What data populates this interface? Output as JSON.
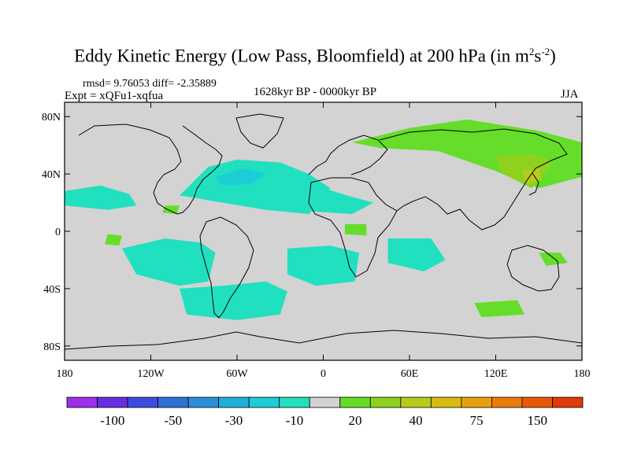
{
  "chart_data": {
    "type": "heatmap",
    "title_main": "Eddy Kinetic Energy (Low Pass, Bloomfield) at 200 hPa (in m",
    "title_sup1": "2",
    "title_mid": "s",
    "title_sup2": "-2",
    "title_end": ")",
    "stats": "rmsd= 9.76053 diff= -2.35889",
    "expt": "Expt = xQFu1-xqfua",
    "period": "1628kyr BP - 0000kyr BP",
    "season": "JJA",
    "xlim": [
      -180,
      180
    ],
    "ylim": [
      -90,
      90
    ],
    "xticks": [
      {
        "value": -180,
        "label": "180"
      },
      {
        "value": -120,
        "label": "120W"
      },
      {
        "value": -60,
        "label": "60W"
      },
      {
        "value": 0,
        "label": "0"
      },
      {
        "value": 60,
        "label": "60E"
      },
      {
        "value": 120,
        "label": "120E"
      },
      {
        "value": 180,
        "label": "180"
      }
    ],
    "yticks": [
      {
        "value": 80,
        "label": "80N"
      },
      {
        "value": 40,
        "label": "40N"
      },
      {
        "value": 0,
        "label": "0"
      },
      {
        "value": -40,
        "label": "40S"
      },
      {
        "value": -80,
        "label": "80S"
      }
    ],
    "background_color": "#d3d3d3",
    "colorbar": {
      "colors": [
        "#9b30e8",
        "#6a2ee0",
        "#3f4bdc",
        "#2e6fd8",
        "#2a8fd8",
        "#1fb0d9",
        "#1ccdd6",
        "#21e0c0",
        "#d3d3d3",
        "#66dd2a",
        "#8ed21f",
        "#b7cc1a",
        "#d8bc12",
        "#e8a010",
        "#ea7d0e",
        "#e85a0a",
        "#e03a08"
      ],
      "labels": [
        {
          "boundary": 1,
          "text": "-100"
        },
        {
          "boundary": 3,
          "text": "-50"
        },
        {
          "boundary": 5,
          "text": "-30"
        },
        {
          "boundary": 7,
          "text": "-10"
        },
        {
          "boundary": 9,
          "text": "20"
        },
        {
          "boundary": 11,
          "text": "40"
        },
        {
          "boundary": 13,
          "text": "75"
        },
        {
          "boundary": 15,
          "text": "150"
        }
      ]
    },
    "regions": [
      {
        "name": "north-atlantic-negative",
        "color": "#21e0c0",
        "points": [
          [
            -100,
            25
          ],
          [
            -80,
            45
          ],
          [
            -60,
            50
          ],
          [
            -30,
            48
          ],
          [
            -10,
            40
          ],
          [
            5,
            30
          ],
          [
            -10,
            12
          ],
          [
            -40,
            15
          ],
          [
            -70,
            20
          ]
        ]
      },
      {
        "name": "north-atlantic-core",
        "color": "#1ccdd6",
        "points": [
          [
            -75,
            38
          ],
          [
            -55,
            44
          ],
          [
            -40,
            40
          ],
          [
            -50,
            33
          ],
          [
            -70,
            32
          ]
        ]
      },
      {
        "name": "north-pacific-negative",
        "color": "#21e0c0",
        "points": [
          [
            -180,
            28
          ],
          [
            -155,
            32
          ],
          [
            -135,
            26
          ],
          [
            -130,
            18
          ],
          [
            -150,
            15
          ],
          [
            -180,
            18
          ]
        ]
      },
      {
        "name": "tropical-atlantic-negative",
        "color": "#21e0c0",
        "points": [
          [
            -30,
            28
          ],
          [
            0,
            30
          ],
          [
            20,
            24
          ],
          [
            35,
            20
          ],
          [
            20,
            12
          ],
          [
            -10,
            14
          ]
        ]
      },
      {
        "name": "south-pacific-negative",
        "color": "#21e0c0",
        "points": [
          [
            -140,
            -12
          ],
          [
            -110,
            -5
          ],
          [
            -85,
            -8
          ],
          [
            -75,
            -15
          ],
          [
            -80,
            -35
          ],
          [
            -100,
            -38
          ],
          [
            -130,
            -30
          ]
        ]
      },
      {
        "name": "southern-ocean-negative",
        "color": "#21e0c0",
        "points": [
          [
            -100,
            -40
          ],
          [
            -70,
            -38
          ],
          [
            -40,
            -35
          ],
          [
            -25,
            -42
          ],
          [
            -30,
            -58
          ],
          [
            -60,
            -62
          ],
          [
            -95,
            -58
          ]
        ]
      },
      {
        "name": "south-atlantic-negative",
        "color": "#21e0c0",
        "points": [
          [
            -25,
            -12
          ],
          [
            5,
            -10
          ],
          [
            25,
            -15
          ],
          [
            22,
            -35
          ],
          [
            -5,
            -38
          ],
          [
            -25,
            -30
          ]
        ]
      },
      {
        "name": "indian-ocean-negative",
        "color": "#21e0c0",
        "points": [
          [
            45,
            -5
          ],
          [
            75,
            -5
          ],
          [
            85,
            -20
          ],
          [
            70,
            -28
          ],
          [
            45,
            -22
          ]
        ]
      },
      {
        "name": "eurasia-positive",
        "color": "#66dd2a",
        "points": [
          [
            20,
            62
          ],
          [
            60,
            72
          ],
          [
            100,
            78
          ],
          [
            150,
            70
          ],
          [
            180,
            62
          ],
          [
            180,
            38
          ],
          [
            150,
            30
          ],
          [
            120,
            42
          ],
          [
            80,
            56
          ],
          [
            40,
            58
          ]
        ]
      },
      {
        "name": "east-asia-positive-core",
        "color": "#8ed21f",
        "points": [
          [
            120,
            52
          ],
          [
            145,
            54
          ],
          [
            160,
            48
          ],
          [
            145,
            30
          ],
          [
            125,
            40
          ]
        ]
      },
      {
        "name": "japan-positive-max",
        "color": "#b7cc1a",
        "points": [
          [
            138,
            42
          ],
          [
            150,
            44
          ],
          [
            152,
            36
          ],
          [
            142,
            33
          ]
        ]
      },
      {
        "name": "equatorial-pacific-positive",
        "color": "#66dd2a",
        "points": [
          [
            -150,
            -2
          ],
          [
            -140,
            -3
          ],
          [
            -142,
            -10
          ],
          [
            -152,
            -9
          ]
        ]
      },
      {
        "name": "central-america-positive",
        "color": "#66dd2a",
        "points": [
          [
            -110,
            18
          ],
          [
            -100,
            18
          ],
          [
            -102,
            12
          ],
          [
            -112,
            13
          ]
        ]
      },
      {
        "name": "africa-equatorial-positive",
        "color": "#66dd2a",
        "points": [
          [
            15,
            5
          ],
          [
            30,
            5
          ],
          [
            30,
            -3
          ],
          [
            15,
            -2
          ]
        ]
      },
      {
        "name": "south-pacific-east-positive",
        "color": "#66dd2a",
        "points": [
          [
            105,
            -50
          ],
          [
            135,
            -48
          ],
          [
            140,
            -58
          ],
          [
            110,
            -60
          ]
        ]
      },
      {
        "name": "australia-east-positive",
        "color": "#66dd2a",
        "points": [
          [
            150,
            -15
          ],
          [
            165,
            -15
          ],
          [
            170,
            -22
          ],
          [
            155,
            -24
          ]
        ]
      }
    ]
  }
}
